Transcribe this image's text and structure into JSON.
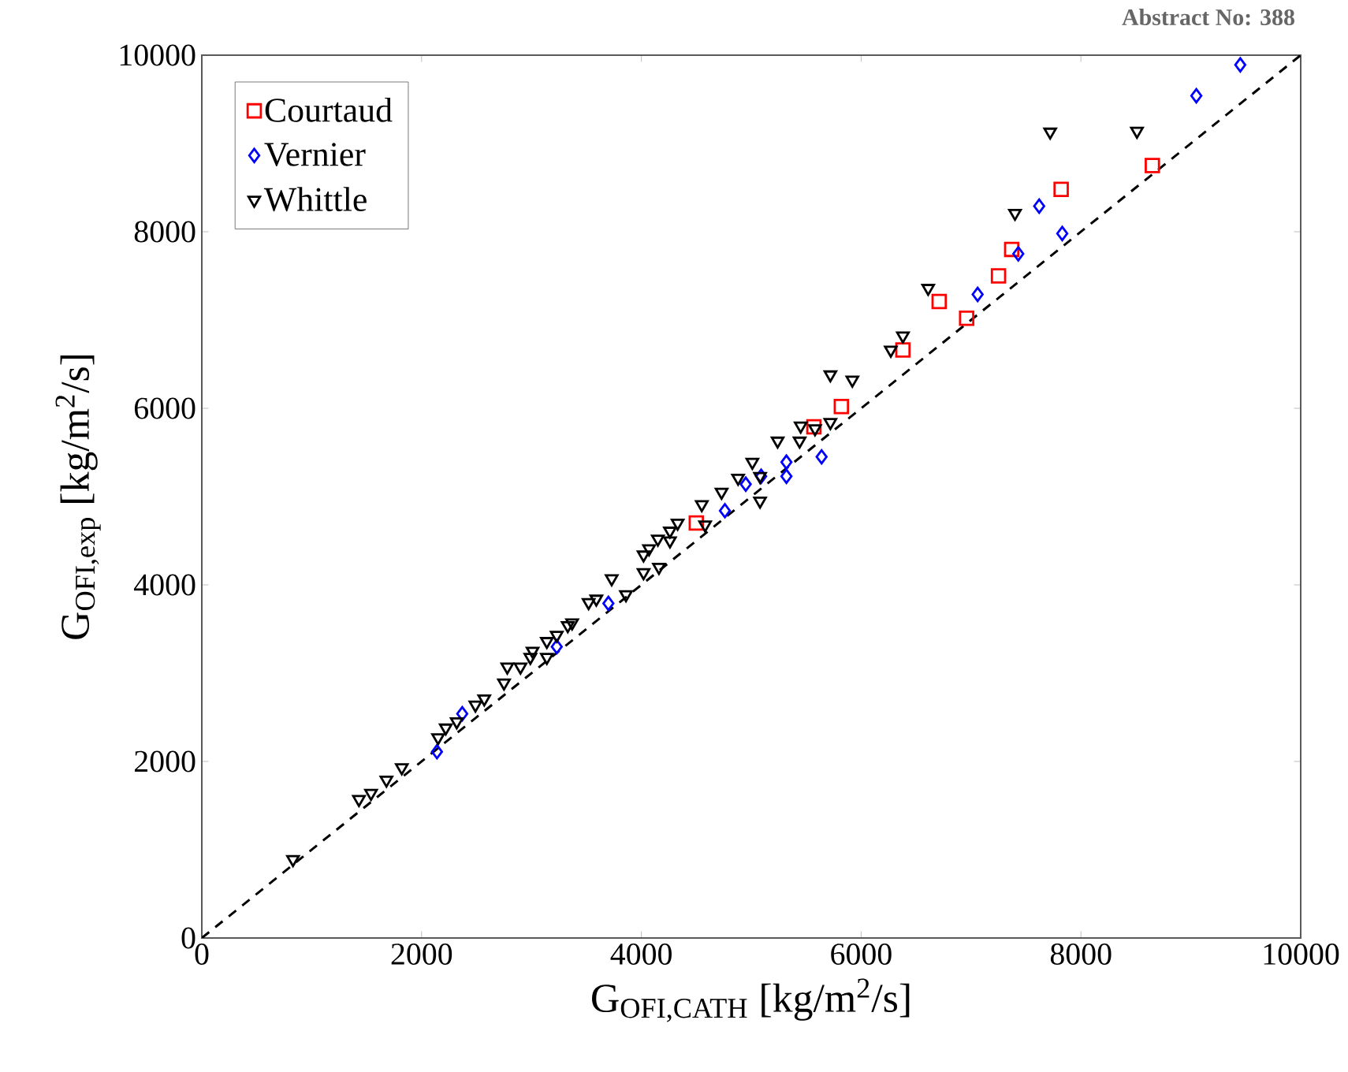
{
  "chart_data": {
    "type": "scatter",
    "xlabel": "G$_{OFI,CATH}$ [kg/m$^{2}$/s]",
    "ylabel": "G$_{OFI,exp}$ [kg/m$^{2}$/s]",
    "annotations": [
      "Abstract No: 388"
    ],
    "xlim": [
      0,
      10000
    ],
    "ylim": [
      0,
      10000
    ],
    "xticks": [
      0,
      2000,
      4000,
      6000,
      8000,
      10000
    ],
    "yticks": [
      0,
      2000,
      4000,
      6000,
      8000,
      10000
    ],
    "legend": "top left",
    "grid": false,
    "series": [
      {
        "name": "Courtaud",
        "color": "#ff0000",
        "marker": "square",
        "x": [
          4500,
          5570,
          5820,
          6380,
          6710,
          6960,
          7250,
          7370,
          7820,
          8650
        ],
        "values": [
          4700,
          5790,
          6020,
          6660,
          7210,
          7020,
          7500,
          7800,
          8480,
          8750
        ]
      },
      {
        "name": "Vernier",
        "color": "#0000ff",
        "marker": "diamond",
        "x": [
          2140,
          2370,
          3230,
          3700,
          4760,
          4950,
          5090,
          5320,
          5320,
          5640,
          7060,
          7430,
          7620,
          7830,
          9050,
          9450
        ],
        "values": [
          2110,
          2540,
          3300,
          3790,
          4840,
          5140,
          5230,
          5390,
          5230,
          5450,
          7290,
          7750,
          8290,
          7980,
          9540,
          9890
        ]
      },
      {
        "name": "Whittle",
        "color": "#000000",
        "marker": "triangle",
        "x": [
          830,
          1430,
          1540,
          1680,
          1820,
          2150,
          2220,
          2320,
          2490,
          2570,
          2750,
          2780,
          2900,
          2990,
          3010,
          3140,
          3140,
          3230,
          3330,
          3370,
          3520,
          3590,
          3730,
          3860,
          4020,
          4020,
          4070,
          4160,
          4150,
          4260,
          4260,
          4330,
          4550,
          4580,
          4730,
          4880,
          5010,
          5080,
          5080,
          5240,
          5440,
          5450,
          5580,
          5720,
          5720,
          5920,
          6270,
          6380,
          6610,
          7400,
          7720,
          8510
        ],
        "values": [
          890,
          1570,
          1640,
          1790,
          1930,
          2270,
          2380,
          2450,
          2640,
          2710,
          2890,
          3070,
          3070,
          3180,
          3250,
          3180,
          3360,
          3430,
          3540,
          3570,
          3800,
          3840,
          4070,
          3890,
          4140,
          4340,
          4410,
          4200,
          4520,
          4500,
          4610,
          4700,
          4910,
          4680,
          5050,
          5210,
          5390,
          4950,
          5230,
          5630,
          5630,
          5800,
          5770,
          5840,
          6380,
          6320,
          6660,
          6820,
          7360,
          8210,
          9130,
          9140
        ]
      },
      {
        "type": "line",
        "color": "#000000",
        "marker": "none",
        "line_style": "dashed",
        "x": [
          0,
          10000
        ],
        "values": [
          0,
          10000
        ]
      }
    ]
  }
}
